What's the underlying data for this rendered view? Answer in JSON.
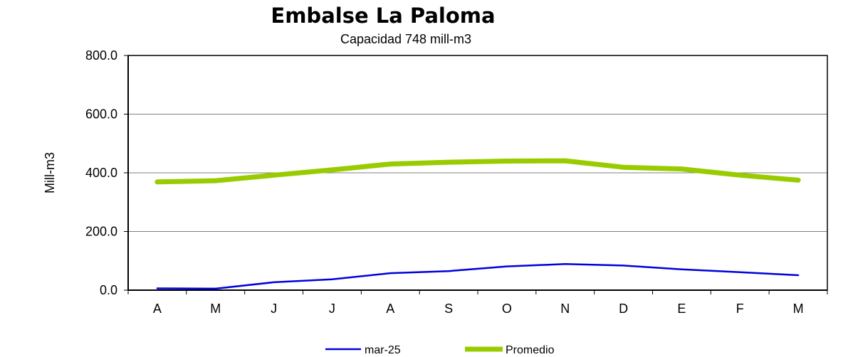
{
  "chart_data": {
    "type": "line",
    "title": "Embalse La Paloma",
    "subtitle": "Capacidad 748 mill-m3",
    "xlabel": "",
    "ylabel": "Mill-m3",
    "categories": [
      "A",
      "M",
      "J",
      "J",
      "A",
      "S",
      "O",
      "N",
      "D",
      "E",
      "F",
      "M"
    ],
    "ylim": [
      0,
      800
    ],
    "yticks": [
      "800.0",
      "600.0",
      "400.0",
      "200.0",
      "0.0"
    ],
    "ytick_values": [
      800,
      600,
      400,
      200,
      0
    ],
    "grid": true,
    "legend_position": "bottom",
    "series": [
      {
        "name": "mar-25",
        "color": "#0000dd",
        "values": [
          6,
          5,
          27,
          37,
          58,
          65,
          81,
          89,
          84,
          71,
          61,
          51
        ]
      },
      {
        "name": "Promedio",
        "color": "#99cc00",
        "values": [
          369,
          373,
          392,
          410,
          430,
          436,
          440,
          441,
          419,
          413,
          392,
          375
        ]
      }
    ]
  }
}
